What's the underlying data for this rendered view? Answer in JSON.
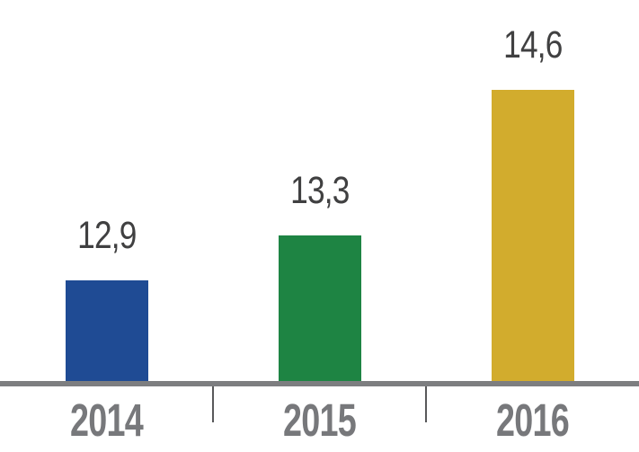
{
  "chart_data": {
    "type": "bar",
    "categories": [
      "2014",
      "2015",
      "2016"
    ],
    "values": [
      12.9,
      13.3,
      14.6
    ],
    "value_labels": [
      "12,9",
      "13,3",
      "14,6"
    ],
    "bar_colors": [
      "#1f4b94",
      "#1e8443",
      "#d2ac2d"
    ],
    "title": "",
    "xlabel": "",
    "ylabel": "",
    "ylim": [
      12,
      15.4
    ],
    "grid": false,
    "legend": false,
    "layout": {
      "data_labels_position": "above-bars",
      "x_ticks": "category-boundaries"
    },
    "colors": {
      "axis_line": "#7d7e80",
      "tick": "#58595b",
      "value_label": "#404041",
      "category_label": "#77787b",
      "background": "#ffffff"
    }
  }
}
